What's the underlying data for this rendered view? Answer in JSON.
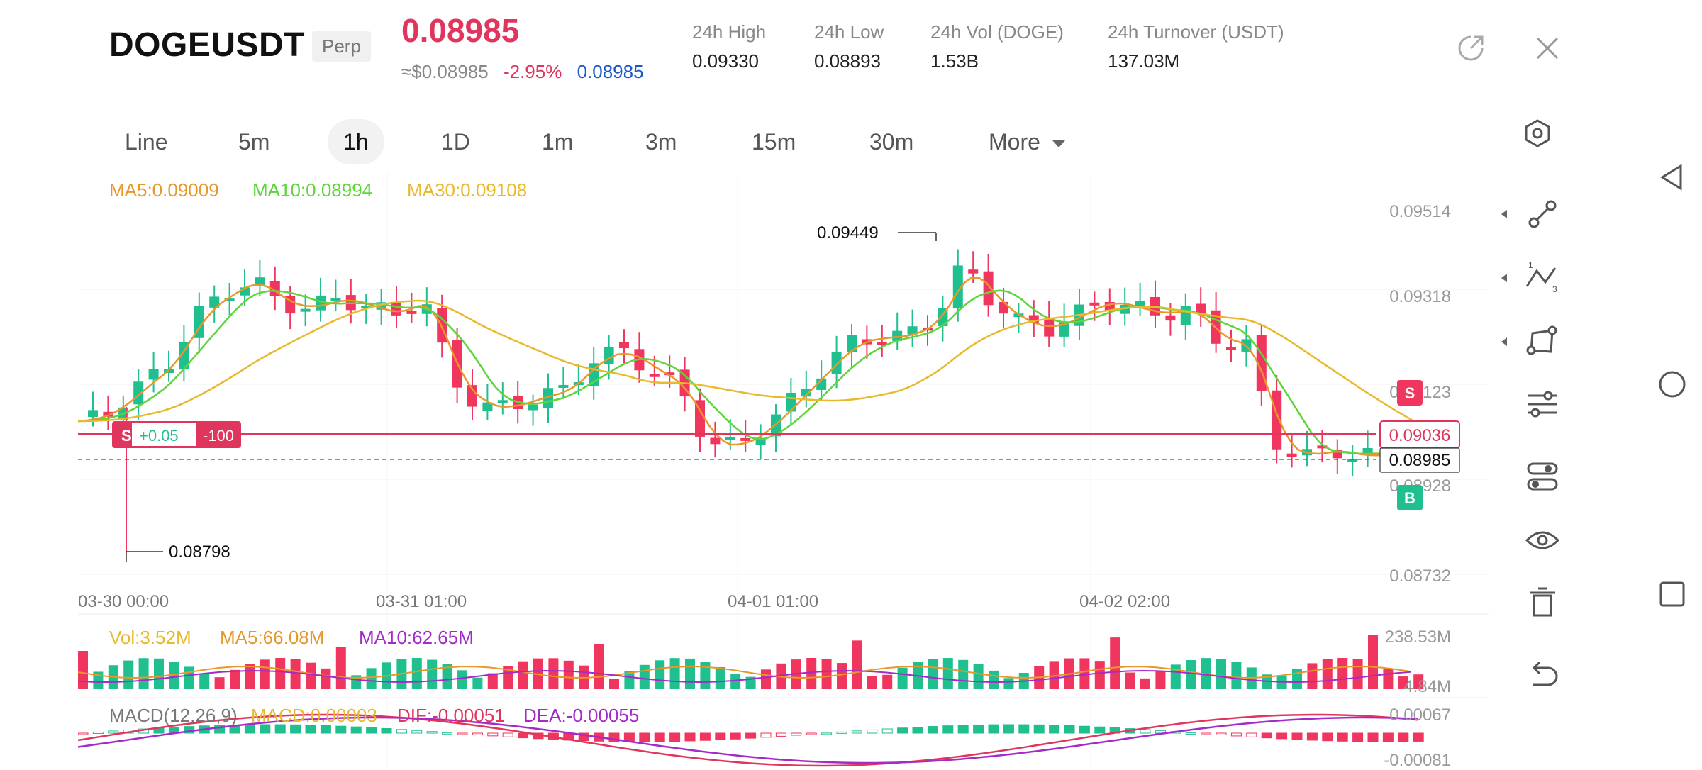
{
  "header": {
    "symbol": "DOGEUSDT",
    "badge": "Perp",
    "last_price": "0.08985",
    "approx_usd": "≈$0.08985",
    "change_pct": "-2.95%",
    "mark_price": "0.08985",
    "stats": [
      {
        "label": "24h  High",
        "value": "0.09330"
      },
      {
        "label": "24h  Low",
        "value": "0.08893"
      },
      {
        "label": "24h  Vol (DOGE)",
        "value": "1.53B"
      },
      {
        "label": "24h  Turnover (USDT)",
        "value": "137.03M"
      }
    ]
  },
  "timeframes": {
    "items": [
      "Line",
      "5m",
      "1h",
      "1D",
      "1m",
      "3m",
      "15m",
      "30m",
      "More"
    ],
    "active": "1h"
  },
  "chart": {
    "ma_labels": {
      "ma5": "MA5:0.09009",
      "ma10": "MA10:0.08994",
      "ma30": "MA30:0.09108"
    },
    "price_axis": [
      "0.09514",
      "0.09318",
      "0.09123",
      "0.08928",
      "0.08732"
    ],
    "date_axis": [
      "03-30 00:00",
      "03-31 01:00",
      "04-01 01:00",
      "04-02 02:00"
    ],
    "high_marker": "0.09449",
    "low_marker": "0.08798",
    "position": {
      "side": "S",
      "pnl": "+0.05",
      "qty": "-100",
      "price": "0.09036"
    },
    "current_price_tag": "0.08985",
    "sell_tag": "S",
    "buy_tag": "B",
    "colors": {
      "up": "#1fbf8f",
      "down": "#f0355e",
      "ma5": "#e8982b",
      "ma10": "#5fd43b",
      "ma30": "#e8b92b",
      "vol_ma10": "#a52bc9"
    }
  },
  "volume": {
    "labels": {
      "vol": "Vol:3.52M",
      "ma5": "MA5:66.08M",
      "ma10": "MA10:62.65M"
    },
    "axis": [
      "238.53M",
      "4.84M"
    ]
  },
  "macd": {
    "labels": {
      "name": "MACD(12,26,9)",
      "macd": "MACD:0.00003",
      "dif": "DIF:-0.00051",
      "dea": "DEA:-0.00055"
    },
    "axis": [
      "0.00067",
      "-0.00081"
    ]
  }
}
